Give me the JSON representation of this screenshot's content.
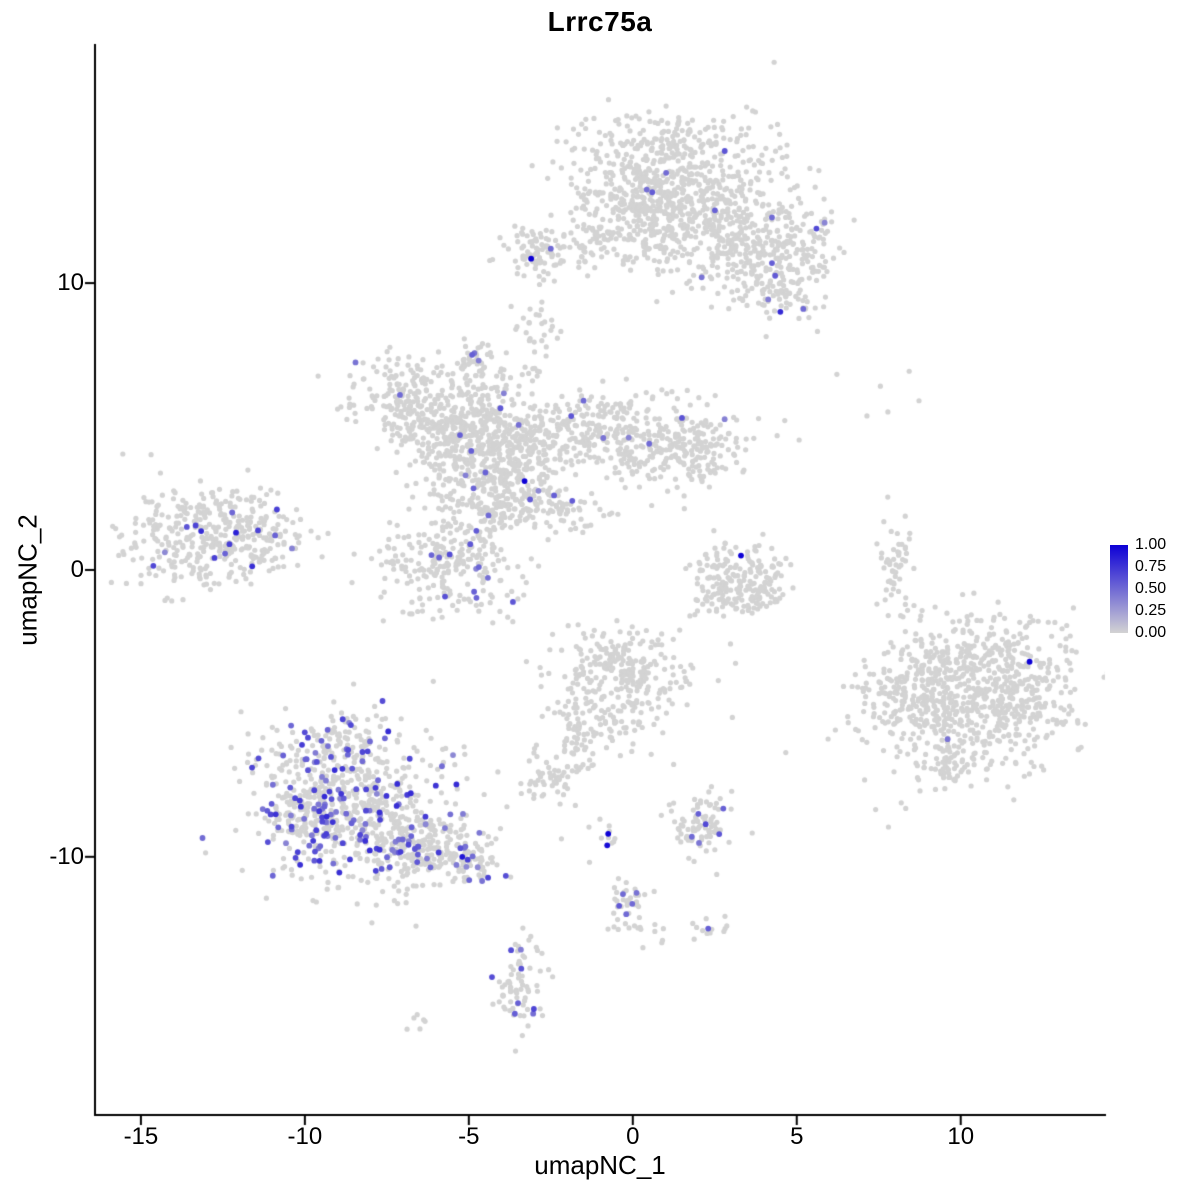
{
  "title": "Lrrc75a",
  "chart_data": {
    "type": "scatter",
    "title": "Lrrc75a",
    "xlabel": "umapNC_1",
    "ylabel": "umapNC_2",
    "xlim": [
      -16.4,
      14.4
    ],
    "ylim": [
      -19.0,
      18.3
    ],
    "x_tick_values": [
      -15,
      -10,
      -5,
      0,
      5,
      10
    ],
    "x_tick_labels": [
      "-15",
      "-10",
      "-5",
      "0",
      "5",
      "10"
    ],
    "y_tick_values": [
      10,
      0,
      -10
    ],
    "y_tick_labels": [
      "10",
      "0",
      "-10"
    ],
    "grid": false,
    "legend": {
      "position": "right",
      "tick_labels": [
        "1.00",
        "0.75",
        "0.50",
        "0.25",
        "0.00"
      ],
      "tick_values": [
        1.0,
        0.75,
        0.5,
        0.25,
        0.0
      ]
    },
    "colors": {
      "low": "#d3d3d3",
      "high": "#0d00d6",
      "axis": "#000000",
      "background": "#ffffff"
    },
    "seed": 11,
    "clusters": [
      {
        "cx": 1.2,
        "cy": 13.9,
        "rx": 1.5,
        "ry": 1.1,
        "n": 480,
        "pos_frac": 0.004,
        "v_min": 0.35,
        "v_max": 0.6
      },
      {
        "cx": 2.2,
        "cy": 12.0,
        "rx": 1.3,
        "ry": 0.9,
        "n": 260,
        "pos_frac": 0.004,
        "v_min": 0.35,
        "v_max": 0.6
      },
      {
        "cx": 0.3,
        "cy": 12.6,
        "rx": 0.9,
        "ry": 0.8,
        "n": 150
      },
      {
        "cx": 3.6,
        "cy": 10.6,
        "rx": 0.9,
        "ry": 0.8,
        "n": 140,
        "pos_frac": 0.01,
        "v_min": 0.35,
        "v_max": 0.6
      },
      {
        "cx": 5.0,
        "cy": 11.2,
        "rx": 0.7,
        "ry": 0.9,
        "n": 110,
        "pos_frac": 0.02,
        "v_min": 0.35,
        "v_max": 0.65
      },
      {
        "cx": -1.3,
        "cy": 11.4,
        "rx": 1.4,
        "ry": 0.45,
        "n": 110
      },
      {
        "cx": -2.8,
        "cy": 11.0,
        "rx": 0.5,
        "ry": 0.45,
        "n": 55
      },
      {
        "cx": -2.9,
        "cy": 8.6,
        "rx": 0.35,
        "ry": 0.35,
        "n": 22
      },
      {
        "cx": 4.6,
        "cy": 9.5,
        "rx": 0.5,
        "ry": 0.5,
        "n": 45
      },
      {
        "cx": -7.0,
        "cy": 5.9,
        "rx": 0.9,
        "ry": 0.8,
        "n": 190,
        "pos_frac": 0.01,
        "v_min": 0.35,
        "v_max": 0.6
      },
      {
        "cx": -5.7,
        "cy": 4.7,
        "rx": 0.8,
        "ry": 0.7,
        "n": 150
      },
      {
        "cx": -4.3,
        "cy": 4.1,
        "rx": 1.0,
        "ry": 1.1,
        "n": 430,
        "pos_frac": 0.012,
        "v_min": 0.35,
        "v_max": 0.6
      },
      {
        "cx": -4.6,
        "cy": 6.2,
        "rx": 0.5,
        "ry": 0.7,
        "n": 70
      },
      {
        "cx": -4.8,
        "cy": 7.4,
        "rx": 0.3,
        "ry": 0.35,
        "n": 26,
        "pos_frac": 0.08,
        "v_min": 0.35,
        "v_max": 0.55
      },
      {
        "cx": -1.9,
        "cy": 4.9,
        "rx": 1.1,
        "ry": 0.65,
        "n": 210,
        "pos_frac": 0.015,
        "v_min": 0.35,
        "v_max": 0.6
      },
      {
        "cx": 0.7,
        "cy": 4.4,
        "rx": 1.3,
        "ry": 0.75,
        "n": 250,
        "pos_frac": 0.012,
        "v_min": 0.35,
        "v_max": 0.6
      },
      {
        "cx": 2.2,
        "cy": 4.2,
        "rx": 0.5,
        "ry": 0.5,
        "n": 60
      },
      {
        "cx": -2.6,
        "cy": 2.2,
        "rx": 0.8,
        "ry": 0.45,
        "n": 85,
        "pos_frac": 0.02,
        "v_min": 0.35,
        "v_max": 0.6
      },
      {
        "cx": -4.1,
        "cy": 2.4,
        "rx": 0.55,
        "ry": 0.55,
        "n": 75,
        "pos_frac": 0.02,
        "v_min": 0.35,
        "v_max": 0.6
      },
      {
        "cx": -3.0,
        "cy": 7.2,
        "rx": 0.35,
        "ry": 0.6,
        "n": 12
      },
      {
        "cx": -5.5,
        "cy": 0.4,
        "rx": 1.05,
        "ry": 0.95,
        "n": 270,
        "pos_frac": 0.035,
        "v_min": 0.35,
        "v_max": 0.65
      },
      {
        "cx": -12.9,
        "cy": 1.2,
        "rx": 1.3,
        "ry": 0.85,
        "n": 360,
        "pos_frac": 0.03,
        "v_min": 0.35,
        "v_max": 0.8
      },
      {
        "cx": -11.3,
        "cy": 1.4,
        "rx": 0.5,
        "ry": 0.5,
        "n": 50
      },
      {
        "cx": 2.6,
        "cy": -0.4,
        "rx": 0.4,
        "ry": 0.7,
        "n": 70
      },
      {
        "cx": 3.3,
        "cy": -0.9,
        "rx": 0.6,
        "ry": 0.35,
        "n": 70
      },
      {
        "cx": 4.0,
        "cy": -0.3,
        "rx": 0.35,
        "ry": 0.6,
        "n": 60
      },
      {
        "cx": 3.2,
        "cy": 0.4,
        "rx": 0.5,
        "ry": 0.3,
        "n": 20
      },
      {
        "cx": 8.0,
        "cy": 0.2,
        "rx": 0.22,
        "ry": 0.8,
        "n": 55
      },
      {
        "cx": 8.3,
        "cy": 6.4,
        "rx": 1.0,
        "ry": 0.6,
        "n": 6
      },
      {
        "cx": 10.6,
        "cy": -3.2,
        "rx": 1.4,
        "ry": 1.0,
        "n": 330,
        "pos_frac": 0.002,
        "v_min": 0.35,
        "v_max": 0.5
      },
      {
        "cx": 10.0,
        "cy": -5.0,
        "rx": 1.5,
        "ry": 1.1,
        "n": 330
      },
      {
        "cx": 8.4,
        "cy": -4.3,
        "rx": 0.7,
        "ry": 0.8,
        "n": 120
      },
      {
        "cx": 9.7,
        "cy": -6.8,
        "rx": 0.5,
        "ry": 0.5,
        "n": 55
      },
      {
        "cx": 11.9,
        "cy": -4.5,
        "rx": 0.6,
        "ry": 0.8,
        "n": 80
      },
      {
        "cx": -8.7,
        "cy": -7.3,
        "rx": 1.5,
        "ry": 1.1,
        "n": 340,
        "pos_frac": 0.18,
        "v_min": 0.35,
        "v_max": 0.8
      },
      {
        "cx": -8.3,
        "cy": -9.2,
        "rx": 1.6,
        "ry": 1.1,
        "n": 340,
        "pos_frac": 0.18,
        "v_min": 0.35,
        "v_max": 0.8
      },
      {
        "cx": -8.9,
        "cy": -5.7,
        "rx": 0.6,
        "ry": 0.5,
        "n": 55,
        "pos_frac": 0.1,
        "v_min": 0.35,
        "v_max": 0.7
      },
      {
        "cx": -6.3,
        "cy": -9.7,
        "rx": 1.1,
        "ry": 0.5,
        "n": 170,
        "pos_frac": 0.1,
        "v_min": 0.35,
        "v_max": 0.75
      },
      {
        "cx": -4.9,
        "cy": -10.2,
        "rx": 0.5,
        "ry": 0.4,
        "n": 55,
        "pos_frac": 0.12,
        "v_min": 0.35,
        "v_max": 0.7
      },
      {
        "cx": -9.9,
        "cy": -8.6,
        "rx": 0.6,
        "ry": 0.8,
        "n": 90,
        "pos_frac": 0.15,
        "v_min": 0.35,
        "v_max": 0.75
      },
      {
        "cx": -0.5,
        "cy": -4.0,
        "rx": 1.1,
        "ry": 1.0,
        "n": 270
      },
      {
        "cx": -0.3,
        "cy": -2.9,
        "rx": 0.5,
        "ry": 0.4,
        "n": 50
      },
      {
        "cx": -1.6,
        "cy": -5.8,
        "rx": 0.4,
        "ry": 0.5,
        "n": 40
      },
      {
        "cx": -2.4,
        "cy": -7.2,
        "rx": 0.5,
        "ry": 0.5,
        "n": 60
      },
      {
        "cx": 2.1,
        "cy": -8.8,
        "rx": 0.5,
        "ry": 0.6,
        "n": 85,
        "pos_frac": 0.04,
        "v_min": 0.4,
        "v_max": 0.7
      },
      {
        "cx": -0.8,
        "cy": -9.4,
        "rx": 0.3,
        "ry": 0.35,
        "n": 10
      },
      {
        "cx": -0.2,
        "cy": -11.6,
        "rx": 0.3,
        "ry": 0.55,
        "n": 38,
        "pos_frac": 0.08,
        "v_min": 0.4,
        "v_max": 0.6
      },
      {
        "cx": 0.4,
        "cy": -12.6,
        "rx": 0.3,
        "ry": 0.3,
        "n": 10
      },
      {
        "cx": 2.3,
        "cy": -12.6,
        "rx": 0.25,
        "ry": 0.25,
        "n": 12
      },
      {
        "cx": -3.5,
        "cy": -14.5,
        "rx": 0.35,
        "ry": 0.9,
        "n": 75,
        "pos_frac": 0.1,
        "v_min": 0.4,
        "v_max": 0.7
      },
      {
        "cx": -6.6,
        "cy": -15.6,
        "rx": 0.3,
        "ry": 0.18,
        "n": 6
      },
      {
        "cx": 4.6,
        "cy": -6.4,
        "rx": 0.05,
        "ry": 0.05,
        "n": 1
      },
      {
        "cx": 6.6,
        "cy": -5.1,
        "rx": 0.05,
        "ry": 0.05,
        "n": 1
      },
      {
        "cx": 1.2,
        "cy": -6.7,
        "rx": 0.05,
        "ry": 0.05,
        "n": 1
      }
    ],
    "highlight_points": [
      [
        -3.1,
        10.85,
        1.0
      ],
      [
        -2.5,
        11.2,
        0.5
      ],
      [
        5.6,
        11.9,
        0.65
      ],
      [
        5.2,
        9.1,
        0.5
      ],
      [
        2.1,
        10.2,
        0.45
      ],
      [
        4.5,
        9.0,
        0.8
      ],
      [
        -4.9,
        7.5,
        0.55
      ],
      [
        -4.7,
        7.3,
        0.4
      ],
      [
        -7.1,
        6.1,
        0.5
      ],
      [
        -1.5,
        5.9,
        0.5
      ],
      [
        1.5,
        5.3,
        0.6
      ],
      [
        -0.9,
        4.6,
        0.45
      ],
      [
        0.5,
        4.4,
        0.5
      ],
      [
        -3.3,
        3.1,
        1.0
      ],
      [
        -2.4,
        2.6,
        0.55
      ],
      [
        -4.4,
        1.9,
        0.5
      ],
      [
        -5.1,
        3.3,
        0.4
      ],
      [
        3.3,
        0.5,
        1.0
      ],
      [
        12.1,
        -3.2,
        1.0
      ],
      [
        9.6,
        -5.9,
        0.45
      ],
      [
        -13.6,
        1.5,
        0.6
      ],
      [
        -12.1,
        1.3,
        0.85
      ],
      [
        -12.3,
        0.9,
        0.7
      ],
      [
        -5.2,
        -10.0,
        0.9
      ],
      [
        -0.75,
        -9.2,
        1.0
      ],
      [
        -0.78,
        -9.6,
        0.95
      ],
      [
        2.3,
        -12.5,
        0.55
      ],
      [
        -3.4,
        -13.9,
        0.6
      ],
      [
        -3.5,
        -15.1,
        0.55
      ],
      [
        -0.3,
        -11.3,
        0.5
      ],
      [
        -0.2,
        -12.0,
        0.5
      ],
      [
        2.0,
        -8.5,
        0.55
      ],
      [
        1.8,
        -9.3,
        0.5
      ]
    ]
  }
}
